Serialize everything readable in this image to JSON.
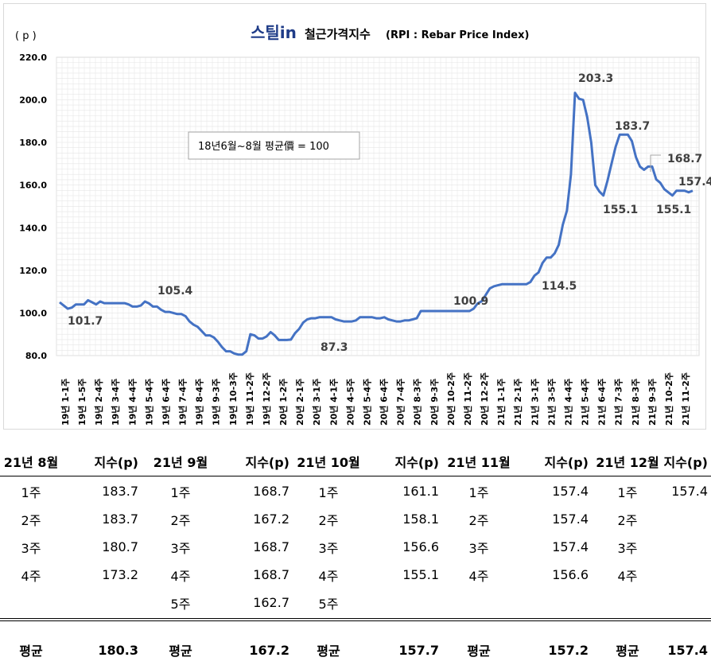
{
  "chart_data": {
    "type": "line",
    "title_logo": "스틸in",
    "title_main": "철근가격지수",
    "title_paren": "(RPI : Rebar Price Index)",
    "ylabel": "( p )",
    "ylim": [
      80,
      220
    ],
    "yticks": [
      "80.0",
      "100.0",
      "120.0",
      "140.0",
      "160.0",
      "180.0",
      "200.0",
      "220.0"
    ],
    "ytick_values": [
      80,
      100,
      120,
      140,
      160,
      180,
      200,
      220
    ],
    "grid": true,
    "note": "18년6월~8월 평균價 = 100",
    "line_color": "#4472C4",
    "xtick_labels": [
      "19년 1-1주",
      "19년 1-5주",
      "19년 2-4주",
      "19년 3-4주",
      "19년 4-4주",
      "19년 5-4주",
      "19년 6-4주",
      "19년 7-4주",
      "19년 8-4주",
      "19년 9-3주",
      "19년 10-3주",
      "19년 11-2주",
      "19년 12-2주",
      "20년 1-2주",
      "20년 2-1주",
      "20년 3-1주",
      "20년 4-1주",
      "20년 4-5주",
      "20년 5-4주",
      "20년 6-4주",
      "20년 7-4주",
      "20년 8-3주",
      "20년 9-3주",
      "20년 10-2주",
      "20년 11-2주",
      "20년 12-2주",
      "21년 1-1주",
      "21년 2-1주",
      "21년 3-1주",
      "21년 3-5주",
      "21년 4-4주",
      "21년 5-4주",
      "21년 6-4주",
      "21년 7-3주",
      "21년 8-3주",
      "21년 9-3주",
      "21년 10-2주",
      "21년 11-2주"
    ],
    "values": [
      105,
      103.5,
      102,
      102.5,
      104,
      104,
      104,
      106,
      105,
      104,
      105.4,
      104.6,
      104.6,
      104.6,
      104.6,
      104.6,
      104.6,
      104,
      103,
      103,
      103.5,
      105.4,
      104.5,
      103,
      103,
      101.5,
      100.5,
      100.5,
      100,
      99.5,
      99.5,
      98.5,
      96,
      94.5,
      93.5,
      91.5,
      89.5,
      89.5,
      88.5,
      86.5,
      84,
      82,
      82,
      81,
      80.5,
      80.5,
      82,
      90,
      89.5,
      88,
      88,
      89,
      91,
      89.5,
      87.3,
      87.3,
      87.3,
      87.5,
      90.5,
      92.5,
      95.5,
      97,
      97.5,
      97.5,
      98,
      98,
      98,
      98,
      97,
      96.5,
      96,
      96,
      96,
      96.5,
      98,
      98,
      98,
      98,
      97.5,
      97.5,
      98,
      97,
      96.5,
      96,
      96,
      96.5,
      96.5,
      97,
      97.5,
      100.9,
      100.9,
      100.9,
      100.9,
      100.9,
      100.9,
      100.9,
      100.9,
      100.9,
      100.9,
      100.9,
      100.9,
      100.9,
      102,
      104.5,
      105.5,
      108.5,
      111.5,
      112.5,
      113,
      113.5,
      113.5,
      113.5,
      113.5,
      113.5,
      113.5,
      113.5,
      114.5,
      117.5,
      119,
      123.5,
      126,
      126,
      128,
      132,
      141.5,
      148,
      165,
      203.3,
      200.5,
      200,
      192,
      180,
      160,
      157,
      155.1,
      162,
      170,
      178,
      183.7,
      183.7,
      183.7,
      180.7,
      173.2,
      168.7,
      167.2,
      168.7,
      168.7,
      162.7,
      161.1,
      158.1,
      156.6,
      155.1,
      157.4,
      157.4,
      157.4,
      156.6,
      157.4
    ],
    "annotations": [
      {
        "label": "101.7",
        "value": 101.7
      },
      {
        "label": "105.4",
        "value": 105.4
      },
      {
        "label": "87.3",
        "value": 87.3
      },
      {
        "label": "100.9",
        "value": 100.9
      },
      {
        "label": "114.5",
        "value": 114.5
      },
      {
        "label": "203.3",
        "value": 203.3
      },
      {
        "label": "155.1",
        "value": 155.1
      },
      {
        "label": "183.7",
        "value": 183.7
      },
      {
        "label": "168.7",
        "value": 168.7
      },
      {
        "label": "155.1",
        "value": 155.1
      },
      {
        "label": "157.4",
        "value": 157.4
      }
    ]
  },
  "table": {
    "headers": [
      "21년 8월",
      "지수(p)",
      "21년 9월",
      "지수(p)",
      "21년 10월",
      "지수(p)",
      "21년 11월",
      "지수(p)",
      "21년 12월",
      "지수(p)"
    ],
    "rows": [
      [
        "1주",
        "183.7",
        "1주",
        "168.7",
        "1주",
        "161.1",
        "1주",
        "157.4",
        "1주",
        "157.4"
      ],
      [
        "2주",
        "183.7",
        "2주",
        "167.2",
        "2주",
        "158.1",
        "2주",
        "157.4",
        "2주",
        ""
      ],
      [
        "3주",
        "180.7",
        "3주",
        "168.7",
        "3주",
        "156.6",
        "3주",
        "157.4",
        "3주",
        ""
      ],
      [
        "4주",
        "173.2",
        "4주",
        "168.7",
        "4주",
        "155.1",
        "4주",
        "156.6",
        "4주",
        ""
      ],
      [
        "",
        "",
        "5주",
        "162.7",
        "5주",
        "",
        "",
        "",
        "",
        ""
      ]
    ],
    "avg": [
      "평균",
      "180.3",
      "평균",
      "167.2",
      "평균",
      "157.7",
      "평균",
      "157.2",
      "평균",
      "157.4"
    ]
  }
}
